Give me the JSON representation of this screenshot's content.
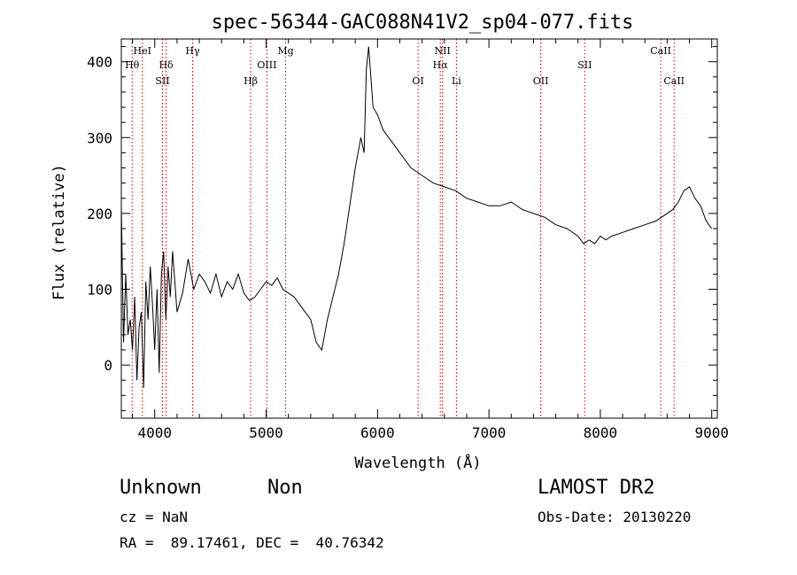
{
  "chart_data": {
    "type": "line",
    "title": "spec-56344-GAC088N41V2_sp04-077.fits",
    "xlabel": "Wavelength (Å)",
    "ylabel": "Flux (relative)",
    "xlim": [
      3700,
      9050
    ],
    "ylim": [
      -70,
      430
    ],
    "xticks": [
      4000,
      5000,
      6000,
      7000,
      8000,
      9000
    ],
    "yticks": [
      0,
      100,
      200,
      300,
      400
    ],
    "grid": false,
    "line_color": "#000000",
    "marker_color": "#cc0000",
    "spectral_lines": [
      {
        "label": "Hθ",
        "wavelength": 3797,
        "row": 1
      },
      {
        "label": "HeI",
        "wavelength": 3889,
        "row": 0
      },
      {
        "label": "Hδ",
        "wavelength": 4102,
        "row": 1
      },
      {
        "label": "SII",
        "wavelength": 4070,
        "row": 2
      },
      {
        "label": "Hγ",
        "wavelength": 4340,
        "row": 0
      },
      {
        "label": "Hβ",
        "wavelength": 4861,
        "row": 2
      },
      {
        "label": "OIII",
        "wavelength": 5007,
        "row": 1
      },
      {
        "label": "Mg",
        "wavelength": 5175,
        "row": 0
      },
      {
        "label": "OI",
        "wavelength": 6364,
        "row": 2
      },
      {
        "label": "NII",
        "wavelength": 6583,
        "row": 0
      },
      {
        "label": "Hα",
        "wavelength": 6563,
        "row": 1
      },
      {
        "label": "Li",
        "wavelength": 6708,
        "row": 2
      },
      {
        "label": "OII",
        "wavelength": 7465,
        "row": 2
      },
      {
        "label": "SII",
        "wavelength": 7860,
        "row": 1
      },
      {
        "label": "CaII",
        "wavelength": 8542,
        "row": 0
      },
      {
        "label": "CaII",
        "wavelength": 8662,
        "row": 2
      }
    ],
    "series": [
      {
        "x": [
          3700,
          3720,
          3740,
          3760,
          3780,
          3800,
          3820,
          3840,
          3860,
          3880,
          3900,
          3920,
          3940,
          3960,
          3980,
          4000,
          4020,
          4040,
          4060,
          4080,
          4100,
          4120,
          4140,
          4160,
          4180,
          4200,
          4250,
          4300,
          4350,
          4400,
          4450,
          4500,
          4550,
          4600,
          4650,
          4700,
          4750,
          4800,
          4850,
          4900,
          4950,
          5000,
          5050,
          5100,
          5150,
          5200,
          5250,
          5300,
          5350,
          5400,
          5450,
          5500,
          5550,
          5600,
          5650,
          5700,
          5750,
          5800,
          5850,
          5880,
          5900,
          5920,
          5940,
          5960,
          6000,
          6050,
          6100,
          6150,
          6200,
          6300,
          6400,
          6500,
          6600,
          6700,
          6800,
          6900,
          7000,
          7100,
          7200,
          7300,
          7400,
          7500,
          7600,
          7700,
          7800,
          7850,
          7900,
          7950,
          8000,
          8050,
          8100,
          8200,
          8300,
          8400,
          8500,
          8600,
          8650,
          8700,
          8750,
          8800,
          8850,
          8900,
          8950,
          9000
        ],
        "y": [
          210,
          30,
          120,
          40,
          60,
          20,
          90,
          -20,
          50,
          70,
          -30,
          110,
          60,
          130,
          80,
          20,
          100,
          -10,
          120,
          150,
          60,
          130,
          90,
          150,
          110,
          70,
          95,
          140,
          100,
          120,
          110,
          95,
          120,
          90,
          110,
          100,
          120,
          95,
          85,
          90,
          100,
          110,
          105,
          115,
          100,
          95,
          90,
          80,
          70,
          60,
          30,
          20,
          60,
          90,
          120,
          160,
          210,
          260,
          300,
          280,
          390,
          420,
          380,
          340,
          330,
          310,
          300,
          290,
          280,
          260,
          250,
          240,
          235,
          230,
          220,
          215,
          210,
          210,
          215,
          205,
          200,
          195,
          185,
          180,
          170,
          160,
          165,
          160,
          170,
          165,
          170,
          175,
          180,
          185,
          190,
          200,
          205,
          215,
          230,
          235,
          220,
          210,
          190,
          180
        ]
      }
    ]
  },
  "footer": {
    "object_class": "Unknown",
    "object_subclass": "Non",
    "survey": "LAMOST DR2",
    "cz": "cz = NaN",
    "obs_date": "Obs-Date: 20130220",
    "coords": "RA =  89.17461, DEC =  40.76342"
  }
}
